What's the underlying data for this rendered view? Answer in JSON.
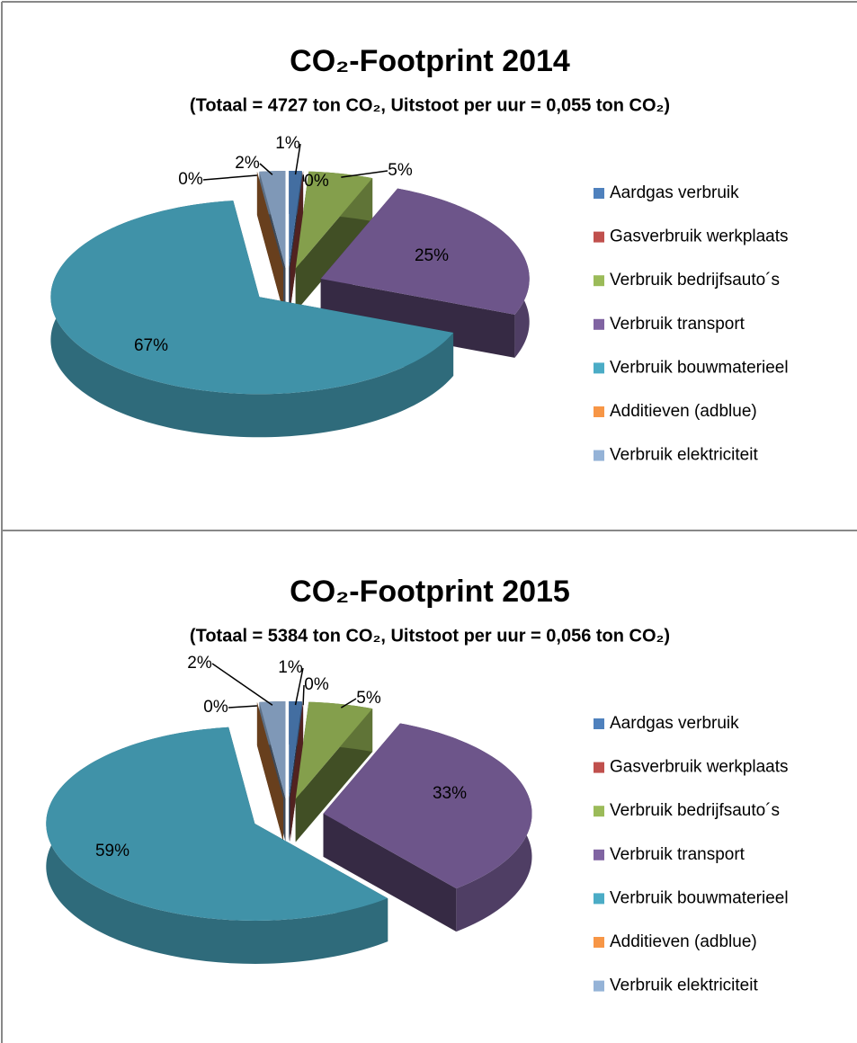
{
  "chart_data": [
    {
      "type": "pie",
      "title": "CO₂-Footprint 2014",
      "subtitle": "(Totaal = 4727 ton CO₂, Uitstoot per uur = 0,055 ton CO₂)",
      "categories": [
        "Aardgas verbruik",
        "Gasverbruik werkplaats",
        "Verbruik bedrijfsauto´s",
        "Verbruik transport",
        "Verbruik bouwmaterieel",
        "Additieven (adblue)",
        "Verbruik elektriciteit"
      ],
      "values": [
        1,
        0,
        5,
        25,
        67,
        0,
        2
      ],
      "value_labels": [
        "1%",
        "0%",
        "5%",
        "25%",
        "67%",
        "0%",
        "2%"
      ],
      "colors": [
        "#4f81bd",
        "#c0504d",
        "#9bbb59",
        "#8064a2",
        "#4bacc6",
        "#f79646",
        "#95b3d7"
      ]
    },
    {
      "type": "pie",
      "title": "CO₂-Footprint 2015",
      "subtitle": "(Totaal = 5384 ton CO₂, Uitstoot per uur = 0,056 ton CO₂)",
      "categories": [
        "Aardgas verbruik",
        "Gasverbruik werkplaats",
        "Verbruik bedrijfsauto´s",
        "Verbruik transport",
        "Verbruik bouwmaterieel",
        "Additieven (adblue)",
        "Verbruik elektriciteit"
      ],
      "values": [
        1,
        0,
        5,
        33,
        59,
        0,
        2
      ],
      "value_labels": [
        "1%",
        "0%",
        "5%",
        "33%",
        "59%",
        "0%",
        "2%"
      ],
      "colors": [
        "#4f81bd",
        "#c0504d",
        "#9bbb59",
        "#8064a2",
        "#4bacc6",
        "#f79646",
        "#95b3d7"
      ]
    }
  ]
}
